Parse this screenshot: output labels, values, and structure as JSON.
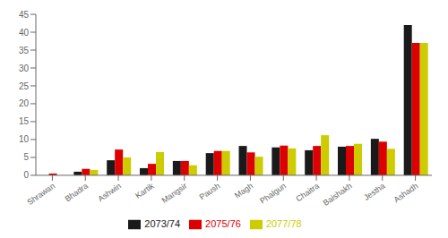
{
  "chart_data": {
    "type": "bar",
    "categories": [
      "Shrawan",
      "Bhadra",
      "Ashwin",
      "Kartik",
      "Mangsir",
      "Paush",
      "Magh",
      "Phalgun",
      "Chaitra",
      "Baishakh",
      "Jestha",
      "Ashadh"
    ],
    "series": [
      {
        "name": "2073/74",
        "color": "#1a1a1a",
        "values": [
          0.0,
          1.0,
          4.2,
          2.0,
          4.0,
          6.2,
          8.2,
          7.8,
          7.0,
          8.0,
          10.2,
          42.0
        ]
      },
      {
        "name": "2075/76",
        "color": "#dd0000",
        "values": [
          0.5,
          1.8,
          7.2,
          3.2,
          4.0,
          6.8,
          6.4,
          8.3,
          8.2,
          8.2,
          9.4,
          37.0
        ]
      },
      {
        "name": "2077/78",
        "color": "#cccc00",
        "values": [
          0.0,
          1.5,
          5.0,
          6.5,
          2.8,
          6.8,
          5.2,
          7.5,
          11.2,
          8.8,
          7.4,
          37.0
        ]
      }
    ],
    "ylim": [
      0,
      45
    ],
    "yticks": [
      0,
      5,
      10,
      15,
      20,
      25,
      30,
      35,
      40,
      45
    ],
    "grid": false,
    "legend": "bottom"
  }
}
